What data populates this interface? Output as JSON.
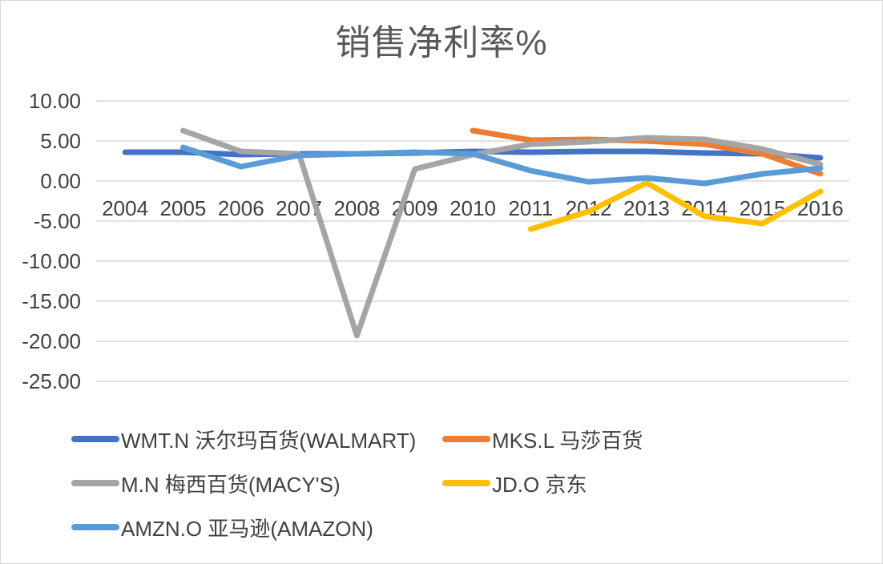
{
  "title": "销售净利率%",
  "chart_data": {
    "type": "line",
    "title": "销售净利率%",
    "xlabel": "",
    "ylabel": "",
    "categories": [
      2004,
      2005,
      2006,
      2007,
      2008,
      2009,
      2010,
      2011,
      2012,
      2013,
      2014,
      2015,
      2016
    ],
    "yticks": [
      10,
      5,
      0,
      -5,
      -10,
      -15,
      -20,
      -25
    ],
    "ylim": [
      -25,
      10
    ],
    "grid": true,
    "grid_color": "#D9D9D9",
    "legend_position": "bottom",
    "series": [
      {
        "name": "WMT.N 沃尔玛百货(WALMART)",
        "color": "#4472C4",
        "values": [
          3.6,
          3.6,
          3.3,
          3.4,
          3.4,
          3.5,
          3.7,
          3.6,
          3.7,
          3.7,
          3.5,
          3.4,
          2.9
        ]
      },
      {
        "name": "MKS.L 马莎百货",
        "color": "#ED7D31",
        "values": [
          null,
          null,
          null,
          null,
          null,
          null,
          6.3,
          5.1,
          5.2,
          5.0,
          4.6,
          3.4,
          0.9
        ]
      },
      {
        "name": "M.N 梅西百货(MACY'S)",
        "color": "#A5A5A5",
        "values": [
          null,
          6.3,
          3.7,
          3.4,
          -19.3,
          1.5,
          3.3,
          4.6,
          4.9,
          5.4,
          5.2,
          4.0,
          2.1
        ]
      },
      {
        "name": "JD.O 京东",
        "color": "#FFC000",
        "values": [
          null,
          null,
          null,
          null,
          null,
          null,
          null,
          -6.0,
          -3.8,
          -0.2,
          -4.4,
          -5.3,
          -1.3
        ]
      },
      {
        "name": "AMZN.O 亚马逊(AMAZON)",
        "color": "#5B9BD5",
        "values": [
          null,
          4.2,
          1.8,
          3.2,
          3.4,
          3.6,
          3.4,
          1.3,
          -0.1,
          0.4,
          -0.3,
          0.9,
          1.6
        ]
      }
    ]
  }
}
